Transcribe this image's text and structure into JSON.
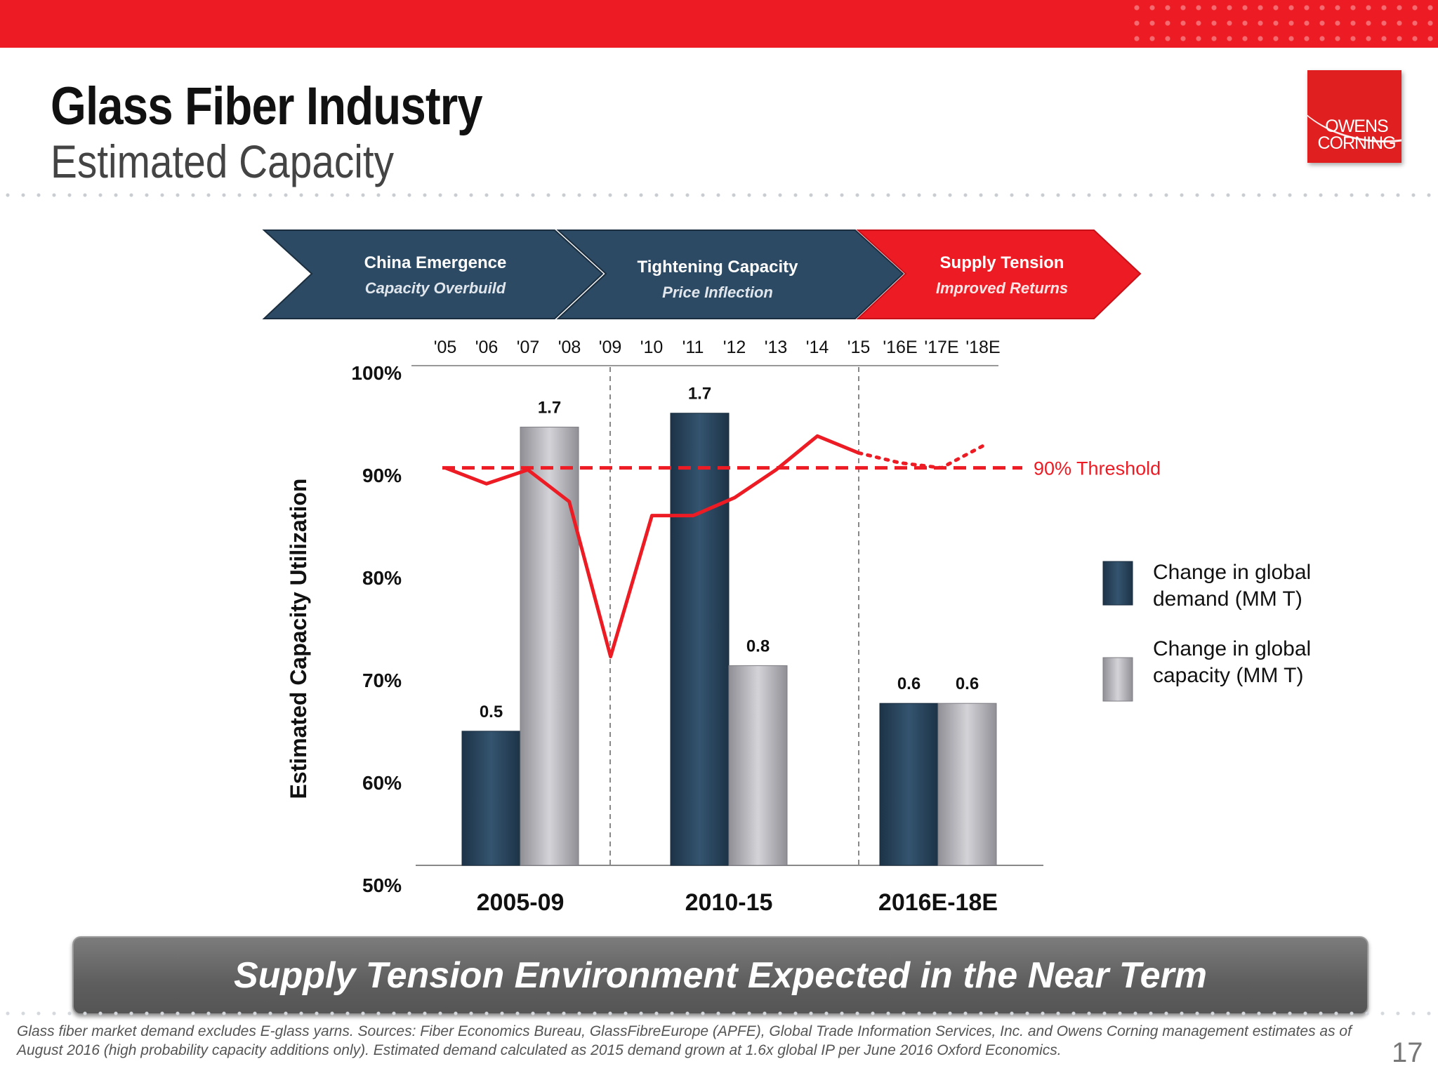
{
  "header": {
    "title": "Glass Fiber Industry",
    "subtitle": "Estimated Capacity",
    "logo_line1": "OWENS",
    "logo_line2": "CORNING"
  },
  "phases": [
    {
      "title": "China Emergence",
      "subtitle": "Capacity Overbuild",
      "color": "#2c4a63"
    },
    {
      "title": "Tightening Capacity",
      "subtitle": "Price Inflection",
      "color": "#2c4a63"
    },
    {
      "title": "Supply Tension",
      "subtitle": "Improved Returns",
      "color": "#ed1c24"
    }
  ],
  "banner": "Supply Tension Environment Expected in the Near Term",
  "footnote": "Glass fiber market demand excludes E-glass yarns. Sources: Fiber Economics Bureau, GlassFibreEurope (APFE), Global Trade Information Services, Inc. and Owens Corning management estimates as of August 2016 (high probability capacity additions only). Estimated demand calculated as 2015 demand grown at 1.6x global IP per June 2016 Oxford Economics.",
  "page_number": "17",
  "colors": {
    "demand": "#2c4a63",
    "capacity": "#b8b8bd",
    "utilization": "#ed1c24",
    "axis": "#888888"
  },
  "chart_data": {
    "type": "bar",
    "ylabel": "Estimated Capacity Utilization",
    "y_ticks": [
      "100%",
      "90%",
      "80%",
      "70%",
      "60%",
      "50%"
    ],
    "y_tick_values": [
      100,
      90,
      80,
      70,
      60,
      50
    ],
    "ylim": [
      50,
      100
    ],
    "categories": [
      "2005-09",
      "2010-15",
      "2016E-18E"
    ],
    "series": [
      {
        "name": "Change in global demand (MM T)",
        "values": [
          0.5,
          1.7,
          0.6
        ],
        "labels": [
          "0.5",
          "1.7",
          "0.6"
        ],
        "bar_top_utilization": [
          63.5,
          95.5,
          66.3
        ]
      },
      {
        "name": "Change in global capacity (MM T)",
        "values": [
          1.7,
          0.8,
          0.6
        ],
        "labels": [
          "1.7",
          "0.8",
          "0.6"
        ],
        "bar_top_utilization": [
          94.1,
          70.1,
          66.3
        ]
      }
    ],
    "years": [
      "'05",
      "'06",
      "'07",
      "'08",
      "'09",
      "'10",
      "'11",
      "'12",
      "'13",
      "'14",
      "'15",
      "'16E",
      "'17E",
      "'18E"
    ],
    "utilization_line": {
      "name": "Estimated capacity utilization",
      "values": [
        90,
        88.4,
        89.8,
        86.6,
        71,
        85.2,
        85.2,
        87,
        89.8,
        93.2,
        91.5
      ],
      "forecast": [
        91.5,
        90.5,
        90.0,
        92.2
      ]
    },
    "threshold": {
      "value": 90,
      "label": "90% Threshold"
    },
    "period_dividers_after_years": [
      "'09",
      "'15"
    ]
  }
}
